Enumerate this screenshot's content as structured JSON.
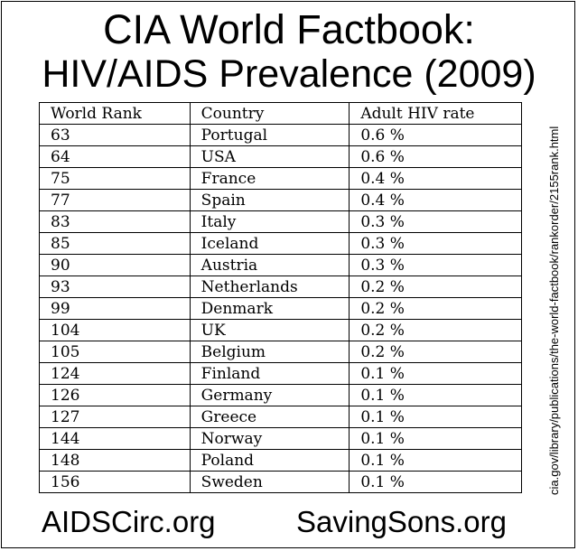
{
  "title": {
    "line1": "CIA World Factbook:",
    "line2": "HIV/AIDS Prevalence (2009)"
  },
  "table": {
    "headers": [
      "World Rank",
      "Country",
      "Adult HIV rate"
    ],
    "rows": [
      [
        "63",
        "Portugal",
        "0.6 %"
      ],
      [
        "64",
        "USA",
        "0.6 %"
      ],
      [
        "75",
        "France",
        "0.4 %"
      ],
      [
        "77",
        "Spain",
        "0.4 %"
      ],
      [
        "83",
        "Italy",
        "0.3 %"
      ],
      [
        "85",
        "Iceland",
        "0.3 %"
      ],
      [
        "90",
        "Austria",
        "0.3 %"
      ],
      [
        "93",
        "Netherlands",
        "0.2 %"
      ],
      [
        "99",
        "Denmark",
        "0.2 %"
      ],
      [
        "104",
        "UK",
        "0.2 %"
      ],
      [
        "105",
        "Belgium",
        "0.2 %"
      ],
      [
        "124",
        "Finland",
        "0.1 %"
      ],
      [
        "126",
        "Germany",
        "0.1 %"
      ],
      [
        "127",
        "Greece",
        "0.1 %"
      ],
      [
        "144",
        "Norway",
        "0.1 %"
      ],
      [
        "148",
        "Poland",
        "0.1 %"
      ],
      [
        "156",
        "Sweden",
        "0.1 %"
      ]
    ]
  },
  "source": "cia.gov/library/publications/the-world-factbook/rankorder/2155rank.html",
  "footer": {
    "left": "AIDSCirc.org",
    "right": "SavingSons.org"
  }
}
